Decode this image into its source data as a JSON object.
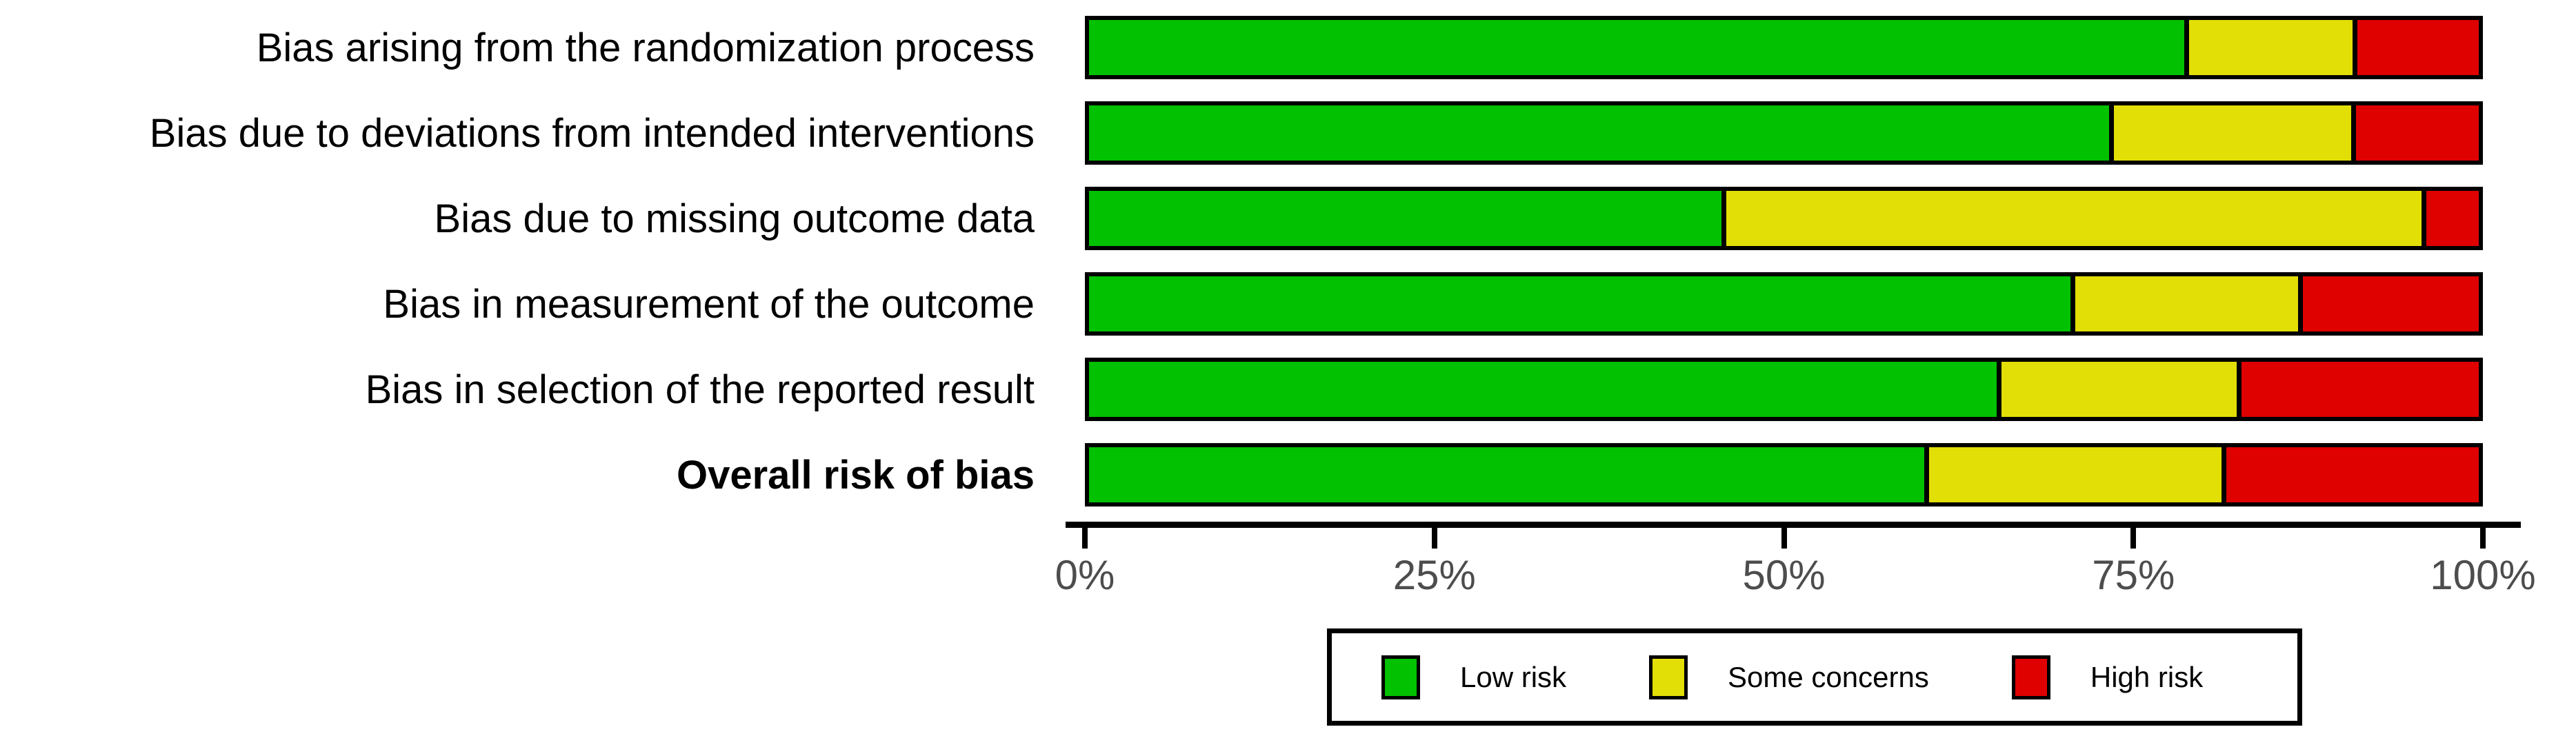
{
  "chart_data": {
    "type": "bar",
    "orientation": "horizontal",
    "stacked": true,
    "unit": "percent",
    "title": "",
    "xlabel": "",
    "ylabel": "",
    "xlim": [
      0,
      100
    ],
    "grid": false,
    "legend_position": "bottom",
    "categories": [
      "Bias arising from the randomization process",
      "Bias due to deviations from intended interventions",
      "Bias due to missing outcome data",
      "Bias in measurement of the outcome",
      "Bias in selection of the reported result",
      "Overall risk of bias"
    ],
    "bold_category_index": 5,
    "series": [
      {
        "name": "Low risk",
        "color": "#02c100",
        "values": [
          78.8,
          73.4,
          45.5,
          70.6,
          65.3,
          60.1
        ]
      },
      {
        "name": "Some concerns",
        "color": "#e2df07",
        "values": [
          12.1,
          17.4,
          50.4,
          16.4,
          17.3,
          21.4
        ]
      },
      {
        "name": "High risk",
        "color": "#df0000",
        "values": [
          9.1,
          9.2,
          4.1,
          13.0,
          17.4,
          18.5
        ]
      }
    ],
    "x_ticks": [
      "0%",
      "25%",
      "50%",
      "75%",
      "100%"
    ]
  },
  "colors": {
    "segment_outline": "#000000",
    "axis_line": "#000000",
    "axis_text": "#4d4d4d",
    "legend_border": "#000000",
    "background": "#ffffff"
  }
}
